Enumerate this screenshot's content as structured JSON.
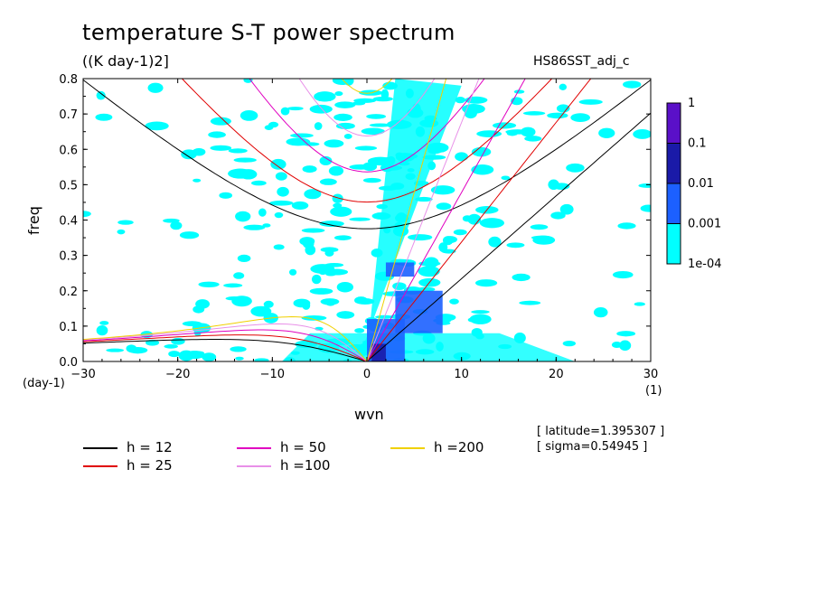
{
  "figure": {
    "title": "temperature S-T power spectrum",
    "units": "((K day-1)2]",
    "dataset": "HS86SST_adj_c",
    "latitude_note": "[ latitude=1.395307 ]",
    "sigma_note": "[ sigma=0.54945 ]"
  },
  "chart_data": {
    "type": "heatmap",
    "title": "temperature S-T power spectrum",
    "xlabel": "wvn",
    "ylabel": "freq",
    "x_unit_left": "(day-1)",
    "x_unit_right": "(1)",
    "xlim": [
      -30,
      30
    ],
    "ylim": [
      0,
      0.8
    ],
    "xticks": [
      -30,
      -20,
      -10,
      0,
      10,
      20,
      30
    ],
    "xtick_labels": [
      "−30",
      "−20",
      "−10",
      "0",
      "10",
      "20",
      "30"
    ],
    "yticks": [
      0,
      0.1,
      0.2,
      0.3,
      0.4,
      0.5,
      0.6,
      0.7,
      0.8
    ],
    "ytick_labels": [
      "0.0",
      "0.1",
      "0.2",
      "0.3",
      "0.4",
      "0.5",
      "0.6",
      "0.7",
      "0.8"
    ],
    "colorbar": {
      "levels": [
        "1",
        "0.1",
        "0.01",
        "0.001",
        "1e-04"
      ],
      "colors": [
        "#5a10c8",
        "#1a1aa8",
        "#1c60ff",
        "#00ffff"
      ]
    },
    "field_description": "Shaded power spectral density; highest values near wvn 0-10 at low frequency, scattered 1e-04 to 0.001 patches across the domain",
    "patches": [
      {
        "x": [
          0,
          4
        ],
        "y": [
          0.0,
          0.12
        ],
        "level": 1
      },
      {
        "x": [
          3,
          8
        ],
        "y": [
          0.08,
          0.2
        ],
        "level": 1
      },
      {
        "x": [
          2,
          5
        ],
        "y": [
          0.24,
          0.28
        ],
        "level": 1
      },
      {
        "x": [
          0.5,
          2
        ],
        "y": [
          0.0,
          0.05
        ],
        "level": 2
      }
    ],
    "dispersion_curves": [
      {
        "name": "h = 12",
        "color": "#000000",
        "equivalent_depth": 12
      },
      {
        "name": "h = 25",
        "color": "#e00000",
        "equivalent_depth": 25
      },
      {
        "name": "h = 50",
        "color": "#e000c0",
        "equivalent_depth": 50
      },
      {
        "name": "h =100",
        "color": "#e890e8",
        "equivalent_depth": 100
      },
      {
        "name": "h =200",
        "color": "#f0d000",
        "equivalent_depth": 200
      }
    ]
  },
  "legend": [
    {
      "label": "h = 12",
      "color": "#000000"
    },
    {
      "label": "h = 25",
      "color": "#e00000"
    },
    {
      "label": "h = 50",
      "color": "#e000c0"
    },
    {
      "label": "h =100",
      "color": "#e890e8"
    },
    {
      "label": "h =200",
      "color": "#f0d000"
    }
  ]
}
